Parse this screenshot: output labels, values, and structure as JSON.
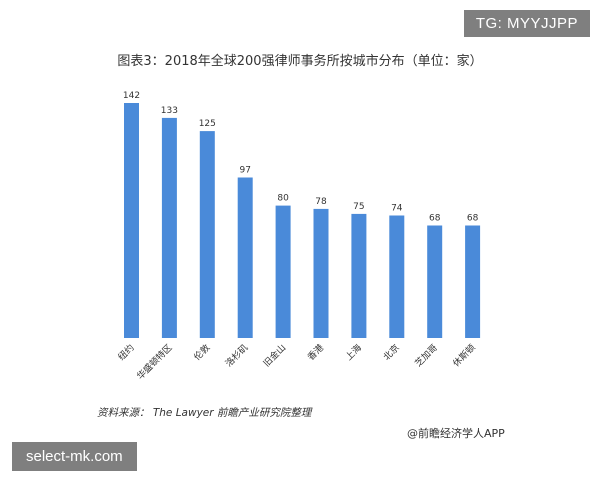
{
  "overlay": {
    "tg_label": "TG: MYYJJPP",
    "site_label": "select-mk.com"
  },
  "source_text": "资料来源： The Lawyer  前瞻产业研究院整理",
  "credit_text": "@前瞻经济学人APP",
  "colors": {
    "bar": "#4a8ad9",
    "text": "#333333"
  },
  "chart_data": {
    "type": "bar",
    "title": "图表3：2018年全球200强律师事务所按城市分布（单位：家）",
    "categories": [
      "纽约",
      "华盛顿特区",
      "伦敦",
      "洛杉矶",
      "旧金山",
      "香港",
      "上海",
      "北京",
      "芝加哥",
      "休斯顿"
    ],
    "values": [
      142,
      133,
      125,
      97,
      80,
      78,
      75,
      74,
      68,
      68
    ],
    "xlabel": "",
    "ylabel": "",
    "ylim": [
      0,
      142
    ],
    "grid": false,
    "legend": "none",
    "data_labels": true
  }
}
